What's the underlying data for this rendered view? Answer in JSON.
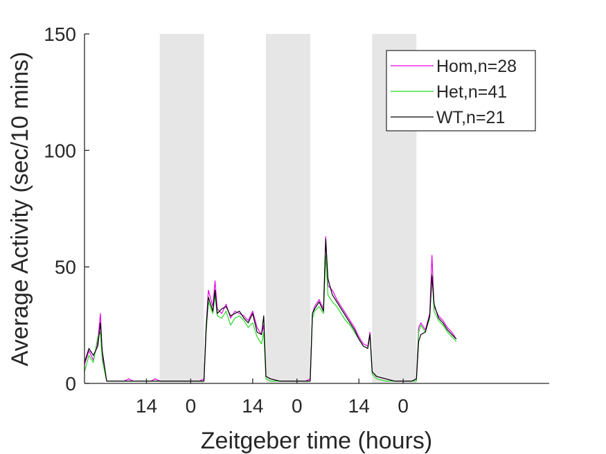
{
  "chart_data": {
    "type": "line",
    "title": "",
    "xlabel": "Zeitgeber time (hours)",
    "ylabel": "Average Activity (sec/10 mins)",
    "ylim": [
      0,
      150
    ],
    "xlim": [
      0,
      105
    ],
    "y_ticks": [
      0,
      50,
      100,
      150
    ],
    "x_ticks": [
      {
        "x": 14,
        "label": "14"
      },
      {
        "x": 24,
        "label": "0"
      },
      {
        "x": 38,
        "label": "14"
      },
      {
        "x": 48,
        "label": "0"
      },
      {
        "x": 62,
        "label": "14"
      },
      {
        "x": 72,
        "label": "0"
      }
    ],
    "dark_periods": [
      [
        17,
        27
      ],
      [
        41,
        51
      ],
      [
        65,
        75
      ]
    ],
    "legend_position": "top-right",
    "grid": false,
    "series": [
      {
        "name": "Hom,n=28",
        "color": "#e600e6",
        "x": [
          0,
          1,
          2,
          3,
          3.6,
          4,
          5,
          6,
          7,
          8,
          9,
          10,
          11,
          12,
          13,
          14,
          15,
          16,
          17,
          17.5,
          18,
          20,
          22,
          24,
          26,
          27,
          27.5,
          28,
          29,
          29.5,
          30,
          31,
          32,
          33,
          34,
          35,
          36,
          37,
          38,
          39,
          40,
          40.5,
          41,
          42,
          44,
          46,
          48,
          50,
          51,
          51.5,
          52,
          53,
          54,
          54.5,
          55,
          56,
          57,
          58,
          59,
          60,
          61,
          62,
          63,
          64,
          64.5,
          65,
          66,
          68,
          70,
          72,
          74,
          75,
          75.5,
          76,
          77,
          78,
          78.5,
          79,
          80,
          81,
          82,
          83,
          84
        ],
        "y": [
          8,
          14,
          10,
          18,
          30,
          12,
          1,
          1,
          1,
          1,
          1,
          2,
          1,
          1,
          1,
          1,
          1,
          2,
          1,
          1,
          1,
          1,
          1,
          1,
          1,
          2,
          25,
          40,
          33,
          44,
          32,
          30,
          34,
          28,
          31,
          30,
          29,
          27,
          31,
          24,
          21,
          25,
          3,
          2,
          1,
          1,
          1,
          1,
          2,
          30,
          33,
          36,
          32,
          63,
          42,
          40,
          36,
          33,
          30,
          27,
          24,
          20,
          17,
          16,
          22,
          5,
          3,
          2,
          1,
          1,
          1,
          2,
          24,
          26,
          23,
          30,
          55,
          33,
          29,
          27,
          24,
          22,
          19
        ]
      },
      {
        "name": "Het,n=41",
        "color": "#26d926",
        "x": [
          0,
          1,
          2,
          3,
          3.6,
          4,
          5,
          6,
          7,
          8,
          9,
          10,
          11,
          12,
          13,
          14,
          15,
          16,
          17,
          17.5,
          18,
          20,
          22,
          24,
          26,
          27,
          27.5,
          28,
          29,
          29.5,
          30,
          31,
          32,
          33,
          34,
          35,
          36,
          37,
          38,
          39,
          40,
          40.5,
          41,
          42,
          44,
          46,
          48,
          50,
          51,
          51.5,
          52,
          53,
          54,
          54.5,
          55,
          56,
          57,
          58,
          59,
          60,
          61,
          62,
          63,
          64,
          64.5,
          65,
          66,
          68,
          70,
          72,
          74,
          75,
          75.5,
          76,
          77,
          78,
          78.5,
          79,
          80,
          81,
          82,
          83,
          84
        ],
        "y": [
          5,
          12,
          9,
          20,
          22,
          10,
          1,
          1,
          1,
          1,
          1,
          1,
          1,
          1,
          1,
          1,
          1,
          1,
          1,
          1,
          1,
          1,
          1,
          1,
          1,
          1,
          22,
          35,
          30,
          38,
          29,
          28,
          31,
          25,
          28,
          29,
          27,
          24,
          26,
          20,
          17,
          22,
          2,
          1,
          1,
          1,
          1,
          1,
          1,
          28,
          31,
          33,
          30,
          55,
          38,
          35,
          33,
          30,
          27,
          25,
          22,
          19,
          16,
          15,
          21,
          4,
          2,
          1,
          1,
          1,
          1,
          1,
          22,
          25,
          22,
          28,
          47,
          31,
          27,
          25,
          22,
          20,
          18
        ]
      },
      {
        "name": "WT,n=21",
        "color": "#000000",
        "x": [
          0,
          1,
          2,
          3,
          3.6,
          4,
          5,
          6,
          7,
          8,
          9,
          10,
          11,
          12,
          13,
          14,
          15,
          16,
          17,
          17.5,
          18,
          20,
          22,
          24,
          26,
          27,
          27.5,
          28,
          29,
          29.5,
          30,
          31,
          32,
          33,
          34,
          35,
          36,
          37,
          38,
          39,
          40,
          40.5,
          41,
          42,
          44,
          46,
          48,
          50,
          51,
          51.5,
          52,
          53,
          54,
          54.5,
          55,
          56,
          57,
          58,
          59,
          60,
          61,
          62,
          63,
          64,
          64.5,
          65,
          66,
          68,
          70,
          72,
          74,
          75,
          75.5,
          76,
          77,
          78,
          78.5,
          79,
          80,
          81,
          82,
          83,
          84
        ],
        "y": [
          9,
          15,
          12,
          16,
          26,
          14,
          1,
          1,
          1,
          1,
          1,
          1,
          1,
          1,
          1,
          1,
          1,
          1,
          1,
          1,
          1,
          1,
          1,
          1,
          1,
          1,
          24,
          37,
          31,
          40,
          30,
          32,
          33,
          29,
          30,
          31,
          28,
          26,
          30,
          22,
          21,
          29,
          3,
          2,
          1,
          1,
          1,
          1,
          1,
          30,
          32,
          35,
          31,
          62,
          45,
          38,
          35,
          32,
          29,
          26,
          23,
          19,
          16,
          15,
          21,
          5,
          3,
          2,
          1,
          1,
          1,
          2,
          18,
          21,
          22,
          29,
          46,
          34,
          28,
          26,
          23,
          21,
          19
        ]
      }
    ]
  }
}
